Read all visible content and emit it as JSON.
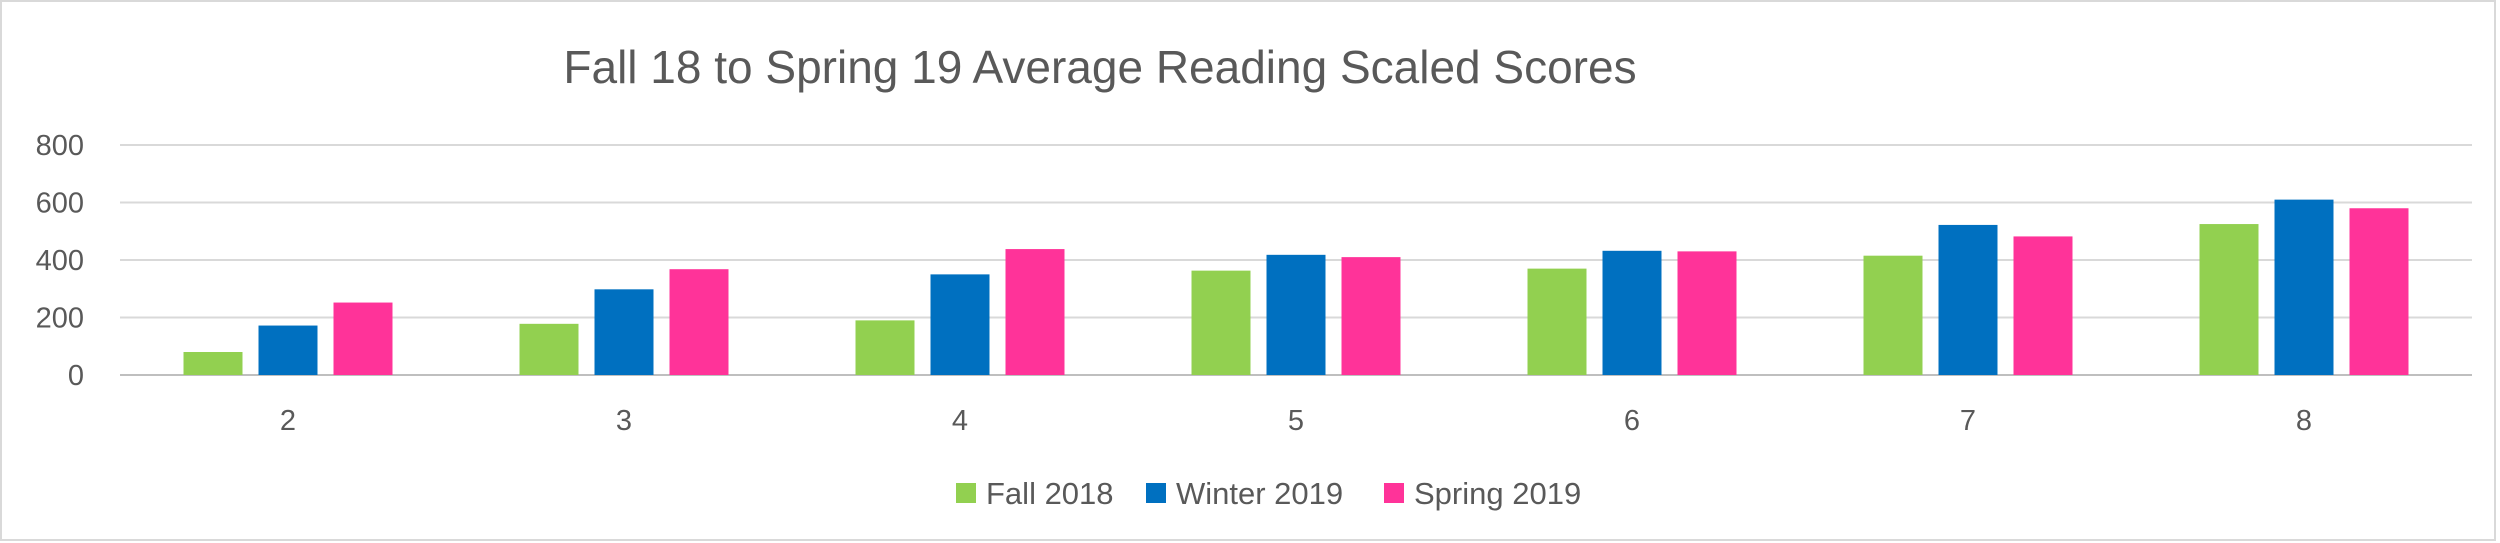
{
  "chart_data": {
    "type": "bar",
    "title": "Fall 18 to Spring 19 Average Reading Scaled Scores",
    "xlabel": "",
    "ylabel": "",
    "categories": [
      "2",
      "3",
      "4",
      "5",
      "6",
      "7",
      "8"
    ],
    "ylim": [
      0,
      800
    ],
    "yticks": [
      0,
      200,
      400,
      600,
      800
    ],
    "grid": true,
    "legend_position": "bottom",
    "series": [
      {
        "name": "Fall 2018",
        "color": "#92d050",
        "values": [
          80,
          178,
          190,
          363,
          370,
          415,
          525
        ]
      },
      {
        "name": "Winter 2019",
        "color": "#0070c0",
        "values": [
          172,
          298,
          350,
          418,
          432,
          522,
          610
        ]
      },
      {
        "name": "Spring 2019",
        "color": "#ff3399",
        "values": [
          252,
          368,
          438,
          410,
          430,
          482,
          580
        ]
      }
    ]
  }
}
